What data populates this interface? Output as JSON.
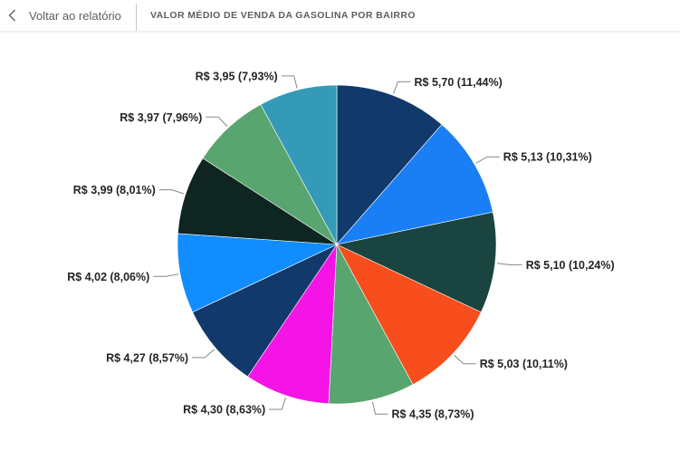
{
  "header": {
    "back_label": "Voltar ao relatório",
    "title": "VALOR MÉDIO DE VENDA DA GASOLINA POR BAIRRO"
  },
  "icons": {
    "back": "chevron-left-icon"
  },
  "chart_data": {
    "type": "pie",
    "title": "VALOR MÉDIO DE VENDA DA GASOLINA POR BAIRRO",
    "values": [
      5.7,
      5.13,
      5.1,
      5.03,
      4.35,
      4.3,
      4.27,
      4.02,
      3.99,
      3.97,
      3.95
    ],
    "percentages": [
      11.44,
      10.31,
      10.24,
      10.11,
      8.73,
      8.63,
      8.57,
      8.06,
      8.01,
      7.96,
      7.93
    ],
    "labels": [
      "R$ 5,70 (11,44%)",
      "R$ 5,13 (10,31%)",
      "R$ 5,10 (10,24%)",
      "R$ 5,03 (10,11%)",
      "R$ 4,35 (8,73%)",
      "R$ 4,30 (8,63%)",
      "R$ 4,27 (8,57%)",
      "R$ 4,02 (8,06%)",
      "R$ 3,99 (8,01%)",
      "R$ 3,97 (7,96%)",
      "R$ 3,95 (7,93%)"
    ],
    "colors": [
      "#12396b",
      "#1a7ef5",
      "#1a4440",
      "#f84d1c",
      "#58a56f",
      "#f414e6",
      "#12396b",
      "#118dff",
      "#0e2522",
      "#58a56f",
      "#3599b8"
    ],
    "start_angle": "12 o'clock",
    "direction": "clockwise",
    "legend": "none"
  }
}
